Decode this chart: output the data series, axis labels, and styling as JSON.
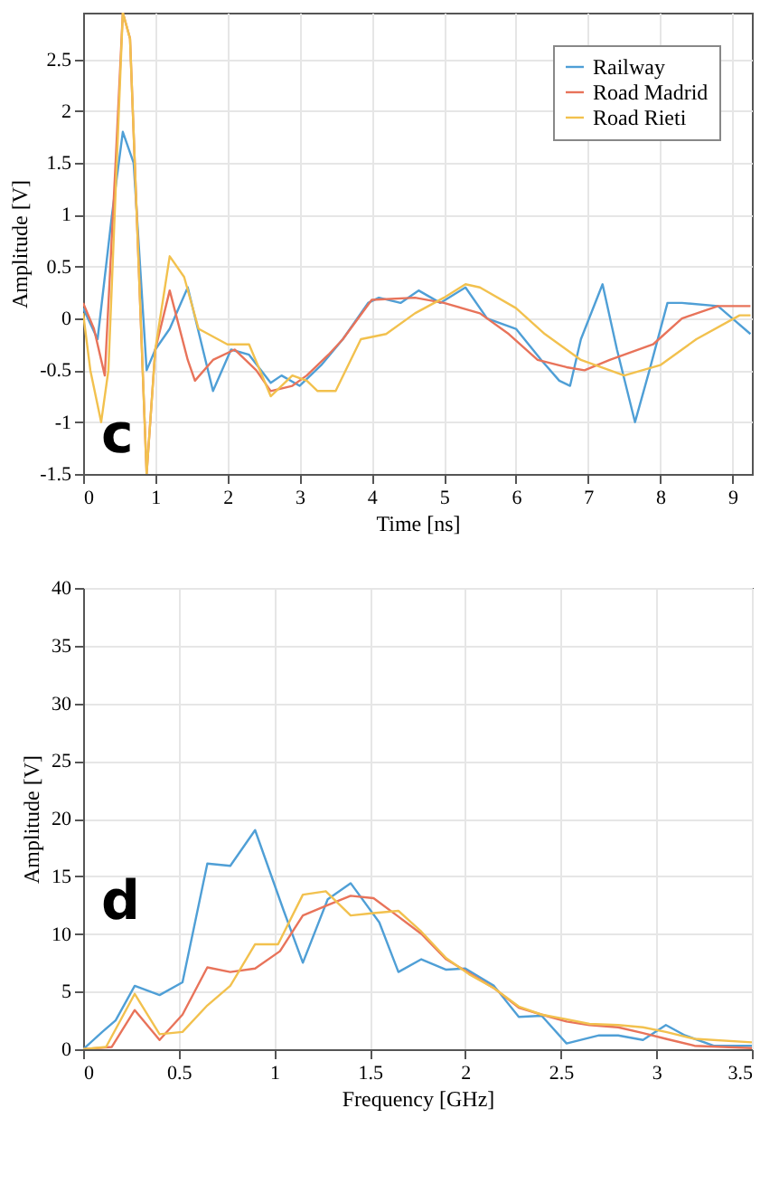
{
  "chart_data": [
    {
      "type": "line",
      "xlabel": "Time [ns]",
      "ylabel": "Amplitude [V]",
      "xlim": [
        0,
        9.27
      ],
      "ylim": [
        -1.5,
        2.95
      ],
      "xticks": [
        0,
        1,
        2,
        3,
        4,
        5,
        6,
        7,
        8,
        9
      ],
      "yticks": [
        -1.5,
        -1,
        -0.5,
        0,
        0.5,
        1,
        1.5,
        2,
        2.5
      ],
      "grid": true,
      "legend": "top right",
      "line_style": "solid",
      "annotations": [
        "c"
      ],
      "series": [
        {
          "name": "Railway",
          "color": "#4f9fd6",
          "x": [
            0,
            0.2,
            0.4,
            0.55,
            0.7,
            0.88,
            1.0,
            1.2,
            1.45,
            1.8,
            2.05,
            2.3,
            2.6,
            2.75,
            3.0,
            3.3,
            3.6,
            3.95,
            4.1,
            4.4,
            4.65,
            4.95,
            5.3,
            5.6,
            6.0,
            6.35,
            6.6,
            6.75,
            6.9,
            7.2,
            7.4,
            7.65,
            7.85,
            8.1,
            8.3,
            8.8,
            9.0,
            9.25
          ],
          "values": [
            0.1,
            -0.2,
            1.0,
            1.8,
            1.5,
            -0.5,
            -0.3,
            -0.1,
            0.3,
            -0.7,
            -0.3,
            -0.35,
            -0.62,
            -0.55,
            -0.65,
            -0.45,
            -0.2,
            0.15,
            0.2,
            0.15,
            0.27,
            0.15,
            0.3,
            0.0,
            -0.1,
            -0.4,
            -0.6,
            -0.65,
            -0.2,
            0.33,
            -0.3,
            -1.0,
            -0.5,
            0.15,
            0.15,
            0.12,
            0.0,
            -0.15
          ]
        },
        {
          "name": "Road Madrid",
          "color": "#e8735a",
          "x": [
            0,
            0.15,
            0.3,
            0.45,
            0.55,
            0.65,
            0.88,
            1.0,
            1.2,
            1.45,
            1.55,
            1.8,
            2.1,
            2.4,
            2.6,
            2.9,
            3.1,
            3.4,
            3.6,
            4.0,
            4.6,
            5.0,
            5.5,
            5.9,
            6.3,
            6.7,
            6.95,
            7.3,
            7.9,
            8.3,
            8.8,
            9.25
          ],
          "values": [
            0.15,
            -0.1,
            -0.55,
            1.5,
            2.95,
            2.7,
            -1.5,
            -0.3,
            0.27,
            -0.4,
            -0.6,
            -0.4,
            -0.3,
            -0.5,
            -0.7,
            -0.65,
            -0.55,
            -0.35,
            -0.2,
            0.18,
            0.2,
            0.15,
            0.05,
            -0.15,
            -0.4,
            -0.47,
            -0.5,
            -0.4,
            -0.25,
            0.0,
            0.12,
            0.12
          ]
        },
        {
          "name": "Road Rieti",
          "color": "#f2c14e",
          "x": [
            0,
            0.1,
            0.25,
            0.35,
            0.55,
            0.65,
            0.88,
            1.0,
            1.2,
            1.4,
            1.6,
            2.0,
            2.3,
            2.6,
            2.9,
            3.1,
            3.25,
            3.5,
            3.85,
            4.2,
            4.6,
            5.0,
            5.3,
            5.5,
            6.0,
            6.4,
            6.9,
            7.5,
            8.0,
            8.5,
            9.1,
            9.25
          ],
          "values": [
            0.05,
            -0.5,
            -1.0,
            -0.5,
            2.95,
            2.7,
            -1.5,
            -0.3,
            0.6,
            0.4,
            -0.1,
            -0.25,
            -0.25,
            -0.75,
            -0.55,
            -0.6,
            -0.7,
            -0.7,
            -0.2,
            -0.15,
            0.05,
            0.2,
            0.33,
            0.3,
            0.1,
            -0.15,
            -0.4,
            -0.55,
            -0.45,
            -0.2,
            0.03,
            0.03
          ]
        }
      ]
    },
    {
      "type": "line",
      "xlabel": "Frequency [GHz]",
      "ylabel": "Amplitude [V]",
      "xlim": [
        0,
        3.5
      ],
      "ylim": [
        0,
        40
      ],
      "xticks": [
        0,
        0.5,
        1,
        1.5,
        2,
        2.5,
        3,
        3.5
      ],
      "yticks": [
        0,
        5,
        10,
        15,
        20,
        25,
        30,
        35,
        40
      ],
      "grid": true,
      "legend": "top right",
      "line_style": "solid",
      "annotations": [
        "d"
      ],
      "series": [
        {
          "name": "Railway",
          "color": "#4f9fd6",
          "x": [
            0,
            0.1,
            0.17,
            0.27,
            0.4,
            0.52,
            0.65,
            0.77,
            0.9,
            1.05,
            1.15,
            1.28,
            1.4,
            1.55,
            1.65,
            1.77,
            1.9,
            2.0,
            2.15,
            2.28,
            2.4,
            2.53,
            2.7,
            2.8,
            2.93,
            3.05,
            3.15,
            3.3,
            3.5
          ],
          "values": [
            0,
            1.5,
            2.5,
            5.5,
            4.7,
            5.8,
            16.1,
            15.9,
            19,
            12,
            7.5,
            13,
            14.4,
            11,
            6.7,
            7.8,
            6.9,
            7,
            5.5,
            2.8,
            2.9,
            0.5,
            1.2,
            1.2,
            0.8,
            2.1,
            1.2,
            0.3,
            0.3
          ]
        },
        {
          "name": "Road Madrid",
          "color": "#e8735a",
          "x": [
            0,
            0.15,
            0.27,
            0.4,
            0.52,
            0.65,
            0.77,
            0.9,
            1.03,
            1.15,
            1.28,
            1.4,
            1.52,
            1.65,
            1.77,
            1.9,
            2.02,
            2.15,
            2.28,
            2.4,
            2.53,
            2.65,
            2.8,
            2.93,
            3.05,
            3.2,
            3.5
          ],
          "values": [
            0,
            0.2,
            3.4,
            0.8,
            3,
            7.1,
            6.7,
            7,
            8.5,
            11.6,
            12.5,
            13.3,
            13.1,
            11.5,
            10,
            7.8,
            6.6,
            5.3,
            3.6,
            3,
            2.4,
            2.1,
            1.9,
            1.4,
            0.9,
            0.3,
            0.1
          ]
        },
        {
          "name": "Road Rieti",
          "color": "#f2c14e",
          "x": [
            0,
            0.12,
            0.27,
            0.4,
            0.52,
            0.65,
            0.77,
            0.9,
            1.02,
            1.15,
            1.27,
            1.4,
            1.52,
            1.65,
            1.77,
            1.9,
            2.02,
            2.15,
            2.28,
            2.4,
            2.53,
            2.65,
            2.8,
            2.93,
            3.05,
            3.2,
            3.5
          ],
          "values": [
            0,
            0.2,
            4.8,
            1.3,
            1.5,
            3.8,
            5.5,
            9.1,
            9.1,
            13.4,
            13.7,
            11.6,
            11.8,
            12,
            10.2,
            7.9,
            6.5,
            5.3,
            3.7,
            3,
            2.6,
            2.2,
            2.1,
            1.9,
            1.5,
            0.9,
            0.6
          ]
        }
      ]
    }
  ]
}
